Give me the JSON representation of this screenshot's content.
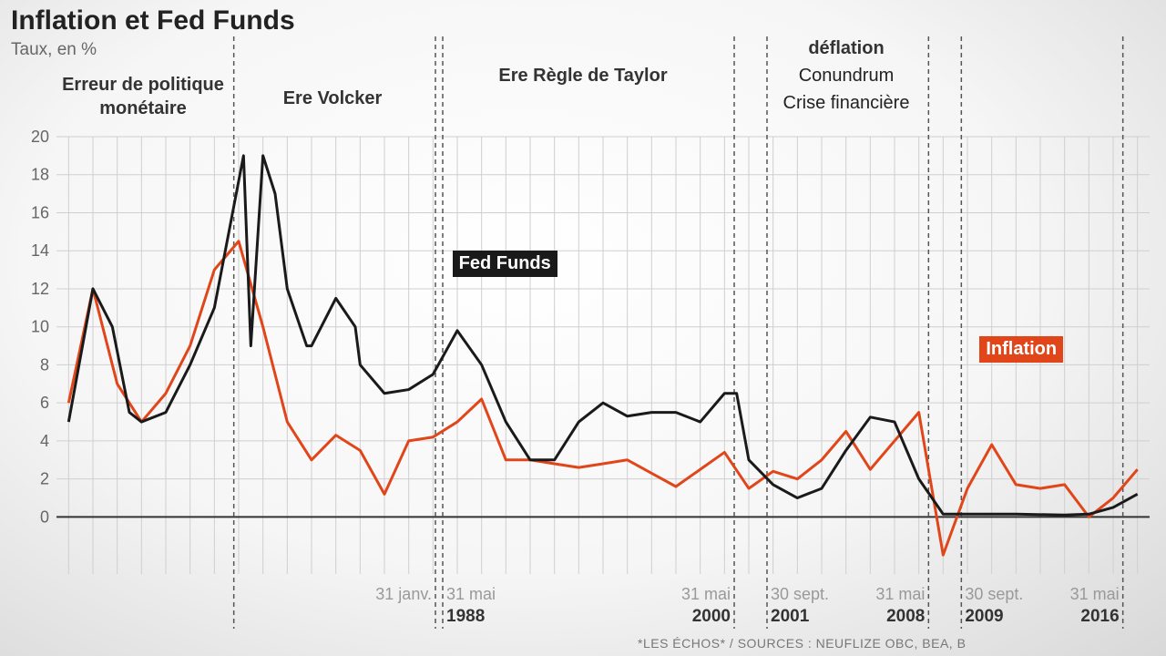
{
  "header": {
    "title": "Inflation et Fed Funds",
    "subtitle": "Taux, en %"
  },
  "eras": [
    {
      "label": "Erreur de politique monétaire"
    },
    {
      "label": "Ere Volcker"
    },
    {
      "label": "Ere Règle de Taylor"
    },
    {
      "label": "déflation"
    },
    {
      "label": "Conundrum"
    },
    {
      "label": "Crise financière"
    }
  ],
  "dividers": [
    {
      "x": 1979.8,
      "day": "",
      "year": ""
    },
    {
      "x": 1988.1,
      "day": "31 janv.",
      "year": ""
    },
    {
      "x": 1988.4,
      "day": "31 mai",
      "year": "1988"
    },
    {
      "x": 2000.4,
      "day": "31 mai",
      "year": "2000"
    },
    {
      "x": 2001.75,
      "day": "30 sept.",
      "year": "2001"
    },
    {
      "x": 2008.4,
      "day": "31 mai",
      "year": "2008"
    },
    {
      "x": 2009.75,
      "day": "30 sept.",
      "year": "2009"
    },
    {
      "x": 2016.4,
      "day": "31 mai",
      "year": "2016"
    }
  ],
  "footer": "*LES ÉCHOS* / SOURCES : NEUFLIZE OBC, BEA, B",
  "colors": {
    "fed_funds": "#1a1a1a",
    "inflation": "#e0461a",
    "grid": "#cfcfcf"
  },
  "chart_data": {
    "type": "line",
    "title": "Inflation et Fed Funds",
    "ylabel": "Taux, en %",
    "yticks": [
      0,
      2,
      4,
      6,
      8,
      10,
      12,
      14,
      16,
      18,
      20
    ],
    "ylim": [
      -3,
      20
    ],
    "xlim": [
      1972.5,
      2017.5
    ],
    "grid": true,
    "series": [
      {
        "name": "Fed Funds",
        "label_color": "#1a1a1a",
        "x": [
          1973,
          1974,
          1974.8,
          1975.5,
          1976,
          1977,
          1978,
          1979,
          1980.2,
          1980.5,
          1981,
          1981.5,
          1982,
          1982.8,
          1983,
          1984,
          1984.8,
          1985,
          1986,
          1987,
          1988,
          1989,
          1990,
          1991,
          1992,
          1993,
          1994,
          1995,
          1996,
          1997,
          1998,
          1999,
          2000,
          2000.5,
          2001,
          2002,
          2003,
          2004,
          2005,
          2006,
          2007,
          2008,
          2009,
          2010,
          2012,
          2014,
          2015,
          2016,
          2017
        ],
        "y": [
          5,
          12,
          10,
          5.5,
          5,
          5.5,
          8,
          11,
          19,
          9,
          19,
          17,
          12,
          9,
          9,
          11.5,
          10,
          8,
          6.5,
          6.7,
          7.5,
          9.8,
          8,
          5,
          3,
          3,
          5,
          6,
          5.3,
          5.5,
          5.5,
          5,
          6.5,
          6.5,
          3,
          1.7,
          1,
          1.5,
          3.5,
          5.25,
          5,
          2,
          0.15,
          0.15,
          0.15,
          0.1,
          0.15,
          0.5,
          1.2
        ]
      },
      {
        "name": "Inflation",
        "label_color": "#e0461a",
        "x": [
          1973,
          1974,
          1975,
          1976,
          1977,
          1978,
          1979,
          1980,
          1981,
          1982,
          1983,
          1984,
          1985,
          1986,
          1987,
          1988,
          1989,
          1990,
          1991,
          1992,
          1993,
          1994,
          1995,
          1996,
          1997,
          1998,
          1999,
          2000,
          2001,
          2002,
          2003,
          2004,
          2005,
          2006,
          2007,
          2008,
          2009,
          2010,
          2011,
          2012,
          2013,
          2014,
          2015,
          2016,
          2017
        ],
        "y": [
          6,
          12,
          7,
          5,
          6.5,
          9,
          13,
          14.5,
          10,
          5,
          3,
          4.3,
          3.5,
          1.2,
          4,
          4.2,
          5,
          6.2,
          3,
          3,
          2.8,
          2.6,
          2.8,
          3,
          2.3,
          1.6,
          2.5,
          3.4,
          1.5,
          2.4,
          2,
          3,
          4.5,
          2.5,
          4,
          5.5,
          -2,
          1.5,
          3.8,
          1.7,
          1.5,
          1.7,
          0,
          1,
          2.5
        ]
      }
    ]
  }
}
